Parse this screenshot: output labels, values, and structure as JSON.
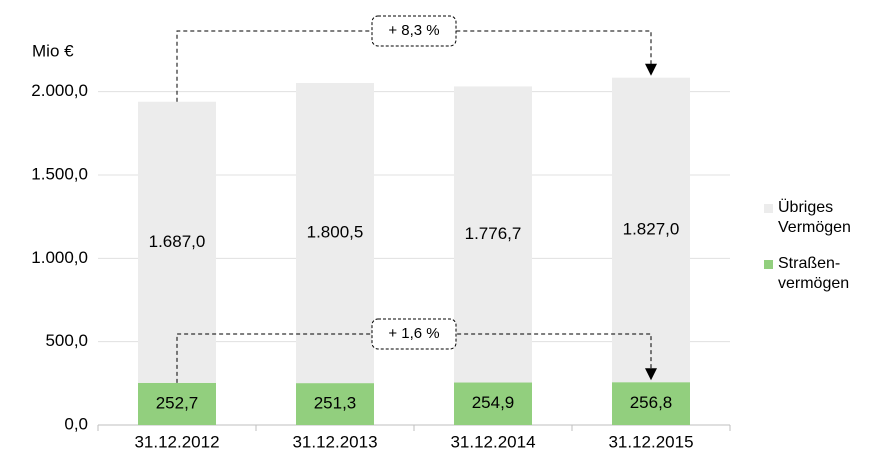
{
  "chart_data": {
    "type": "bar",
    "stacked": true,
    "y_axis_label": "Mio €",
    "categories": [
      "31.12.2012",
      "31.12.2013",
      "31.12.2014",
      "31.12.2015"
    ],
    "series": [
      {
        "name": "Straßen-vermögen",
        "color": "#92cf7e",
        "values": [
          252.7,
          251.3,
          254.9,
          256.8
        ],
        "value_labels": [
          "252,7",
          "251,3",
          "254,9",
          "256,8"
        ]
      },
      {
        "name": "Übriges Vermögen",
        "color": "#ececec",
        "values": [
          1687.0,
          1800.5,
          1776.7,
          1827.0
        ],
        "value_labels": [
          "1.687,0",
          "1.800,5",
          "1.776,7",
          "1.827,0"
        ]
      }
    ],
    "ylim": [
      0,
      2250
    ],
    "yticks": [
      {
        "value": 0,
        "label": "0,0"
      },
      {
        "value": 500,
        "label": "500,0"
      },
      {
        "value": 1000,
        "label": "1.000,0"
      },
      {
        "value": 1500,
        "label": "1.500,0"
      },
      {
        "value": 2000,
        "label": "2.000,0"
      }
    ],
    "grid": true,
    "legend": "right",
    "annotations": [
      {
        "text": "+ 8,3 %"
      },
      {
        "text": "+ 1,6 %"
      }
    ]
  }
}
